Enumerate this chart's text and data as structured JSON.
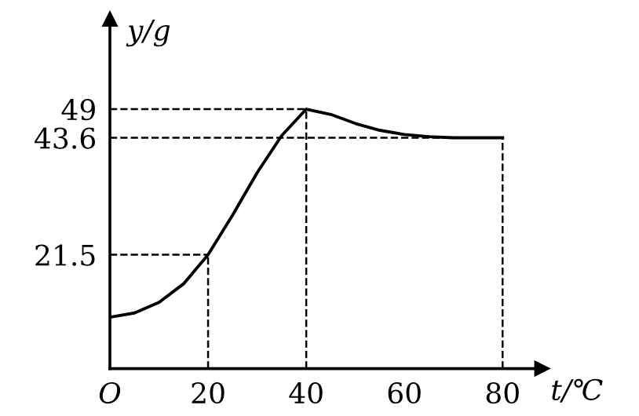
{
  "chart_data": {
    "type": "line",
    "xlabel": "t/℃",
    "ylabel": "y/g",
    "x": [
      0,
      5,
      10,
      15,
      20,
      25,
      30,
      35,
      40,
      45,
      50,
      55,
      60,
      65,
      70,
      75,
      80
    ],
    "series": [
      {
        "color": "#000000",
        "values": [
          9.7,
          10.5,
          12.5,
          16,
          21.5,
          29,
          37,
          44,
          49,
          48,
          46.3,
          45,
          44.2,
          43.8,
          43.6,
          43.6,
          43.6
        ]
      }
    ],
    "xlim": [
      0,
      88
    ],
    "ylim": [
      0,
      66
    ],
    "xticks": [
      {
        "value": 0,
        "label": "O"
      },
      20,
      40,
      60,
      80
    ],
    "yticks": [
      21.5,
      43.6,
      49
    ],
    "ref_lines": [
      {
        "axis": "x",
        "value": 20,
        "line_style": "dashed"
      },
      {
        "axis": "x",
        "value": 40,
        "line_style": "dashed"
      },
      {
        "axis": "x",
        "value": 80,
        "line_style": "dashed"
      },
      {
        "axis": "y",
        "value": 21.5,
        "line_style": "dashed"
      },
      {
        "axis": "y",
        "value": 49,
        "line_style": "dashed"
      },
      {
        "axis": "y",
        "value": 43.6,
        "line_style": "dashed"
      }
    ],
    "grid": false,
    "marker": "none",
    "line_style": "solid"
  }
}
